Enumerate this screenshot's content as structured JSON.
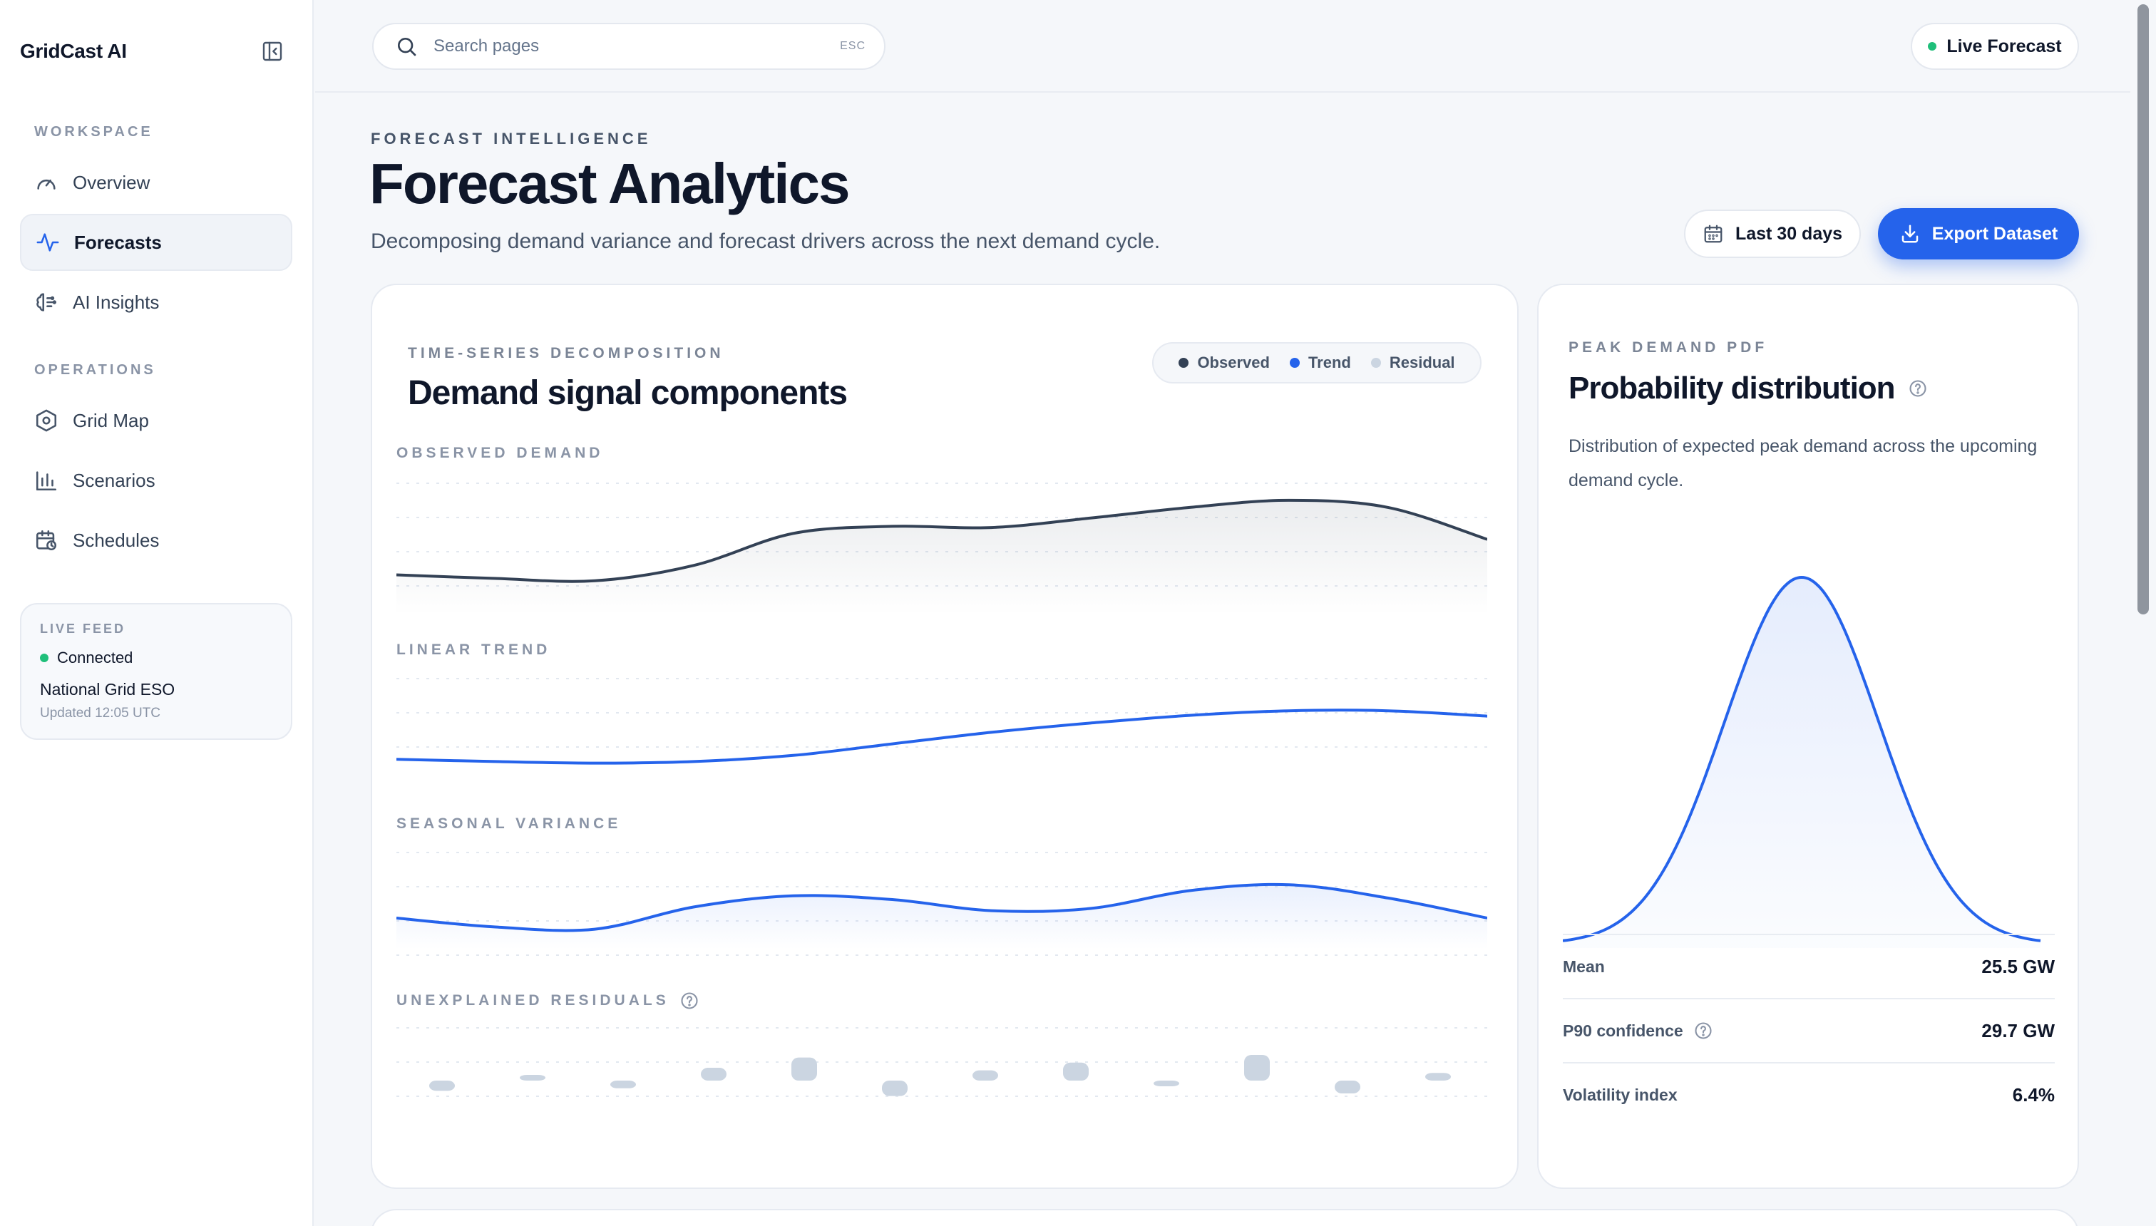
{
  "app": {
    "name": "GridCast AI"
  },
  "sidebar": {
    "sections": [
      {
        "label": "WORKSPACE"
      },
      {
        "label": "OPERATIONS"
      }
    ],
    "items": [
      {
        "label": "Overview",
        "icon": "gauge-icon"
      },
      {
        "label": "Forecasts",
        "icon": "pulse-icon",
        "active": true
      },
      {
        "label": "AI Insights",
        "icon": "brain-icon"
      },
      {
        "label": "Grid Map",
        "icon": "hexagon-icon"
      },
      {
        "label": "Scenarios",
        "icon": "bar-chart-icon"
      },
      {
        "label": "Schedules",
        "icon": "calendar-clock-icon"
      }
    ],
    "feed": {
      "label": "LIVE FEED",
      "status": "Connected",
      "source": "National Grid ESO",
      "updated": "Updated 12:05 UTC"
    }
  },
  "topbar": {
    "search_placeholder": "Search pages",
    "search_shortcut": "ESC",
    "live_label": "Live Forecast"
  },
  "header": {
    "eyebrow": "FORECAST INTELLIGENCE",
    "title": "Forecast Analytics",
    "subtitle": "Decomposing demand variance and forecast drivers across the next demand cycle.",
    "range_label": "Last 30 days",
    "export_label": "Export Dataset"
  },
  "decomposition": {
    "eyebrow": "TIME-SERIES DECOMPOSITION",
    "title": "Demand signal components",
    "legend": [
      "Observed",
      "Trend",
      "Residual"
    ],
    "panels": {
      "observed": "OBSERVED DEMAND",
      "trend": "LINEAR TREND",
      "seasonal": "SEASONAL VARIANCE",
      "residuals": "UNEXPLAINED RESIDUALS"
    }
  },
  "pdf": {
    "eyebrow": "PEAK DEMAND PDF",
    "title": "Probability distribution",
    "description": "Distribution of expected peak demand across the upcoming demand cycle.",
    "stats": [
      {
        "label": "Mean",
        "value": "25.5 GW"
      },
      {
        "label": "P90 confidence",
        "value": "29.7 GW"
      },
      {
        "label": "Volatility index",
        "value": "6.4%"
      }
    ]
  },
  "chart_data": [
    {
      "type": "area",
      "name": "Observed demand",
      "values": [
        0.25,
        0.22,
        0.2,
        0.33,
        0.6,
        0.66,
        0.65,
        0.73,
        0.82,
        0.88,
        0.82,
        0.55
      ]
    },
    {
      "type": "line",
      "name": "Linear trend",
      "values": [
        0.1,
        0.07,
        0.05,
        0.07,
        0.15,
        0.3,
        0.45,
        0.57,
        0.67,
        0.73,
        0.73,
        0.66
      ]
    },
    {
      "type": "area",
      "name": "Seasonal variance",
      "values": [
        0.25,
        0.13,
        0.1,
        0.4,
        0.55,
        0.5,
        0.35,
        0.38,
        0.62,
        0.7,
        0.52,
        0.25
      ]
    },
    {
      "type": "bar",
      "name": "Residuals",
      "values": [
        -0.4,
        0.2,
        -0.3,
        0.5,
        0.9,
        -0.6,
        0.4,
        0.7,
        -0.2,
        1.0,
        -0.5,
        0.3
      ]
    },
    {
      "type": "line",
      "name": "Peak demand PDF",
      "mean": 25.5,
      "p90": 29.7
    }
  ],
  "colors": {
    "accent": "#2563eb",
    "observed": "#334155",
    "residual": "#cbd5e1",
    "live": "#1fbf7a"
  }
}
